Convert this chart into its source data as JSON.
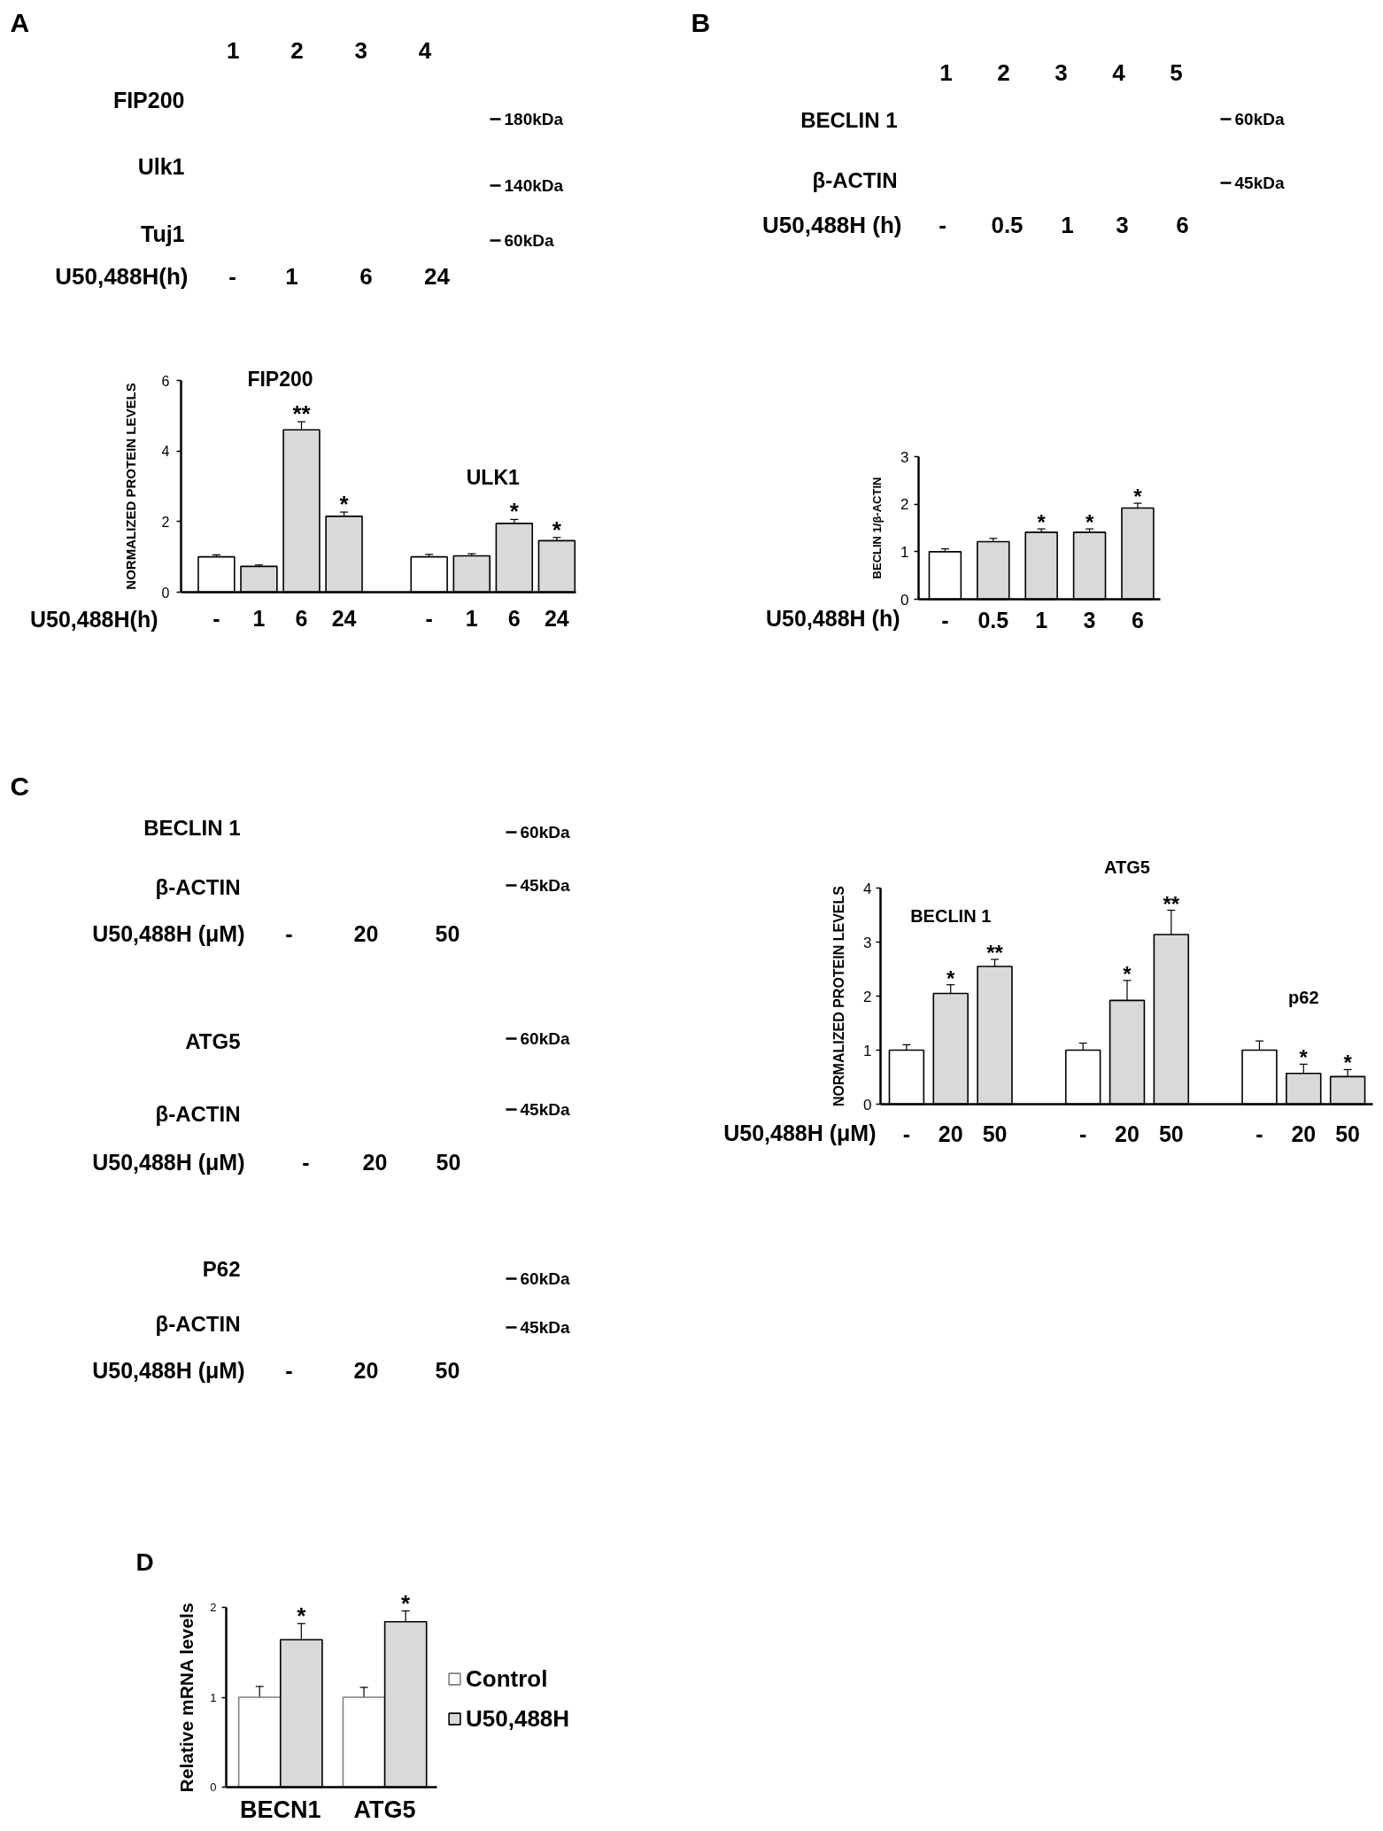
{
  "chart_data": [
    {
      "type": "other",
      "title": "A",
      "annotations": [
        "1 2 3 4",
        "FIP200",
        "180kDa",
        "Ulk1",
        "140kDa",
        "Tuj1",
        "60kDa",
        "U50,488H(h)",
        "-",
        "1",
        "6",
        "24"
      ]
    },
    {
      "type": "bar",
      "categories": [
        "-",
        "1",
        "6",
        "24",
        null,
        "-",
        "1",
        "6",
        "24"
      ],
      "values": [
        1.0,
        0.73,
        4.6,
        2.15,
        null,
        1.0,
        1.03,
        1.95,
        1.46
      ],
      "colors": [
        "#ffffff",
        "#d9d9d9",
        "#d9d9d9",
        "#d9d9d9",
        null,
        "#ffffff",
        "#d9d9d9",
        "#d9d9d9",
        "#d9d9d9"
      ],
      "errors": [
        0.06,
        0.04,
        0.23,
        0.12,
        null,
        0.07,
        0.06,
        0.11,
        0.09
      ],
      "value_labels": [
        null,
        null,
        "**",
        "*",
        null,
        null,
        null,
        "*",
        "*"
      ],
      "annotations": [
        "FIP200",
        "ULK1"
      ],
      "xlabel": "U50,488H(h)",
      "ylabel": "NORMALIZED PROTEIN LEVELS",
      "ylim": [
        0,
        6
      ],
      "yticks": [
        0,
        2,
        4,
        6
      ]
    },
    {
      "type": "other",
      "title": "B",
      "annotations": [
        "1 2 3 4 5",
        "BECLIN 1",
        "60kDa",
        "β-ACTIN",
        "45kDa",
        "U50,488H (h)",
        "-",
        "0.5",
        "1",
        "3",
        "6"
      ]
    },
    {
      "type": "bar",
      "categories": [
        "-",
        "0.5",
        "1",
        "3",
        "6"
      ],
      "values": [
        1.0,
        1.21,
        1.41,
        1.41,
        1.92
      ],
      "colors": [
        "#ffffff",
        "#d9d9d9",
        "#d9d9d9",
        "#d9d9d9",
        "#d9d9d9"
      ],
      "errors": [
        0.06,
        0.07,
        0.07,
        0.07,
        0.1
      ],
      "value_labels": [
        null,
        null,
        "*",
        "*",
        "*"
      ],
      "xlabel": "U50,488H (h)",
      "ylabel": "BECLIN 1/β-ACTIN",
      "ylim": [
        0,
        3
      ],
      "yticks": [
        0,
        1,
        2,
        3
      ]
    },
    {
      "type": "other",
      "title": "C",
      "annotations": [
        "BECLIN 1",
        "60kDa",
        "β-ACTIN",
        "45kDa",
        "U50,488H (μM)",
        "-",
        "20",
        "50"
      ]
    },
    {
      "type": "other",
      "annotations": [
        "ATG5",
        "60kDa",
        "β-ACTIN",
        "45kDa",
        "U50,488H (μM)",
        "-",
        "20",
        "50"
      ]
    },
    {
      "type": "other",
      "annotations": [
        "P62",
        "60kDa",
        "β-ACTIN",
        "45kDa",
        "U50,488H (μM)",
        "-",
        "20",
        "50"
      ]
    },
    {
      "type": "bar",
      "categories": [
        "-",
        "20",
        "50",
        null,
        "-",
        "20",
        "50",
        null,
        "-",
        "20",
        "50"
      ],
      "values": [
        1.0,
        2.05,
        2.55,
        null,
        1.0,
        1.92,
        3.14,
        null,
        1.0,
        0.57,
        0.51
      ],
      "colors": [
        "#ffffff",
        "#d9d9d9",
        "#d9d9d9",
        null,
        "#ffffff",
        "#d9d9d9",
        "#d9d9d9",
        null,
        "#ffffff",
        "#d9d9d9",
        "#d9d9d9"
      ],
      "errors": [
        0.1,
        0.16,
        0.13,
        null,
        0.13,
        0.37,
        0.45,
        null,
        0.17,
        0.17,
        0.13
      ],
      "value_labels": [
        null,
        "*",
        "**",
        null,
        null,
        "*",
        "**",
        null,
        null,
        "*",
        "*"
      ],
      "annotations": [
        "BECLIN 1",
        "ATG5",
        "p62"
      ],
      "xlabel": "U50,488H (μM)",
      "ylabel": "NORMALIZED PROTEIN LEVELS",
      "ylim": [
        0,
        4
      ],
      "yticks": [
        0,
        1,
        2,
        3,
        4
      ]
    },
    {
      "type": "bar",
      "title": "D",
      "categories": [
        "BECN1",
        "ATG5"
      ],
      "series": [
        {
          "name": "Control",
          "color": "#ffffff",
          "values": [
            1.0,
            1.0
          ],
          "errors": [
            0.12,
            0.11
          ]
        },
        {
          "name": "U50,488H",
          "color": "#d9d9d9",
          "values": [
            1.64,
            1.84
          ],
          "errors": [
            0.18,
            0.12
          ],
          "value_labels": [
            "*",
            "*"
          ]
        }
      ],
      "ylabel": "Relative mRNA levels",
      "ylim": [
        0,
        2
      ],
      "yticks": [
        0,
        1,
        2
      ],
      "legend": "right"
    }
  ]
}
